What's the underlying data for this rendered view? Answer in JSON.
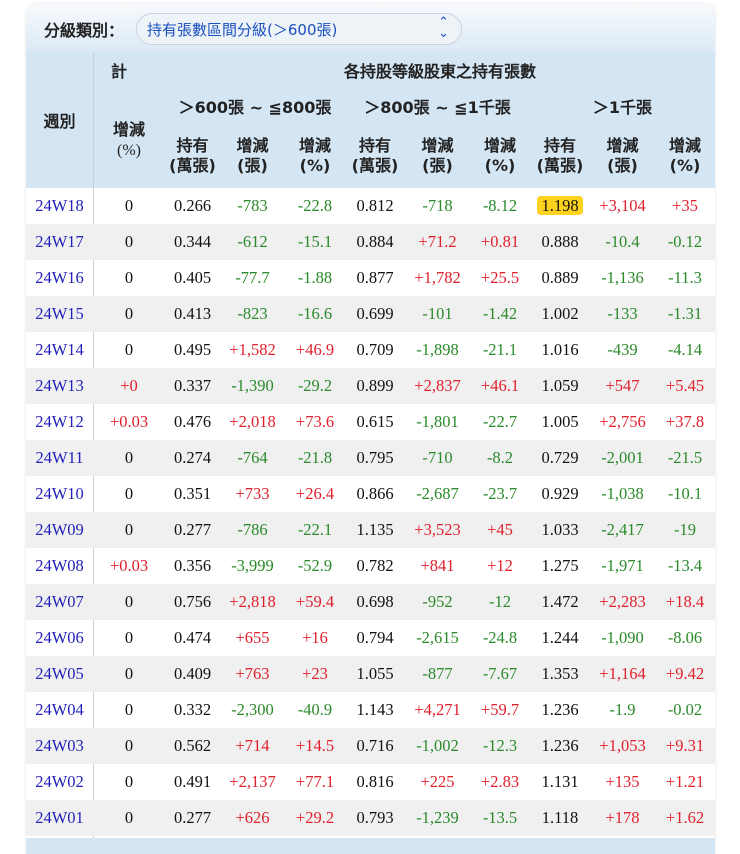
{
  "filter": {
    "label": "分級類別：",
    "selected": "持有張數區間分級(＞600張)",
    "icon": "chevron-up-down-icon"
  },
  "header": {
    "week": "週別",
    "total_partial": "計",
    "total_change_pct": [
      "增減",
      "(%)"
    ],
    "group_title": "各持股等級股東之持有張數",
    "groups": [
      "＞600張 ~ ≦800張",
      "＞800張 ~ ≦1千張",
      "＞1千張"
    ],
    "sub": [
      [
        "持有",
        "(萬張)"
      ],
      [
        "增減",
        "(張)"
      ],
      [
        "增減",
        "(%)"
      ]
    ]
  },
  "colors": {
    "positive": "#e0202c",
    "negative": "#2a8a2a",
    "week_link": "#2222bb",
    "highlight": "#ffd21f"
  },
  "highlight": {
    "week": "24W18",
    "column": 8
  },
  "rows": [
    [
      "24W18",
      "0",
      "0.266",
      "-783",
      "-22.8",
      "0.812",
      "-718",
      "-8.12",
      "1.198",
      "+3,104",
      "+35"
    ],
    [
      "24W17",
      "0",
      "0.344",
      "-612",
      "-15.1",
      "0.884",
      "+71.2",
      "+0.81",
      "0.888",
      "-10.4",
      "-0.12"
    ],
    [
      "24W16",
      "0",
      "0.405",
      "-77.7",
      "-1.88",
      "0.877",
      "+1,782",
      "+25.5",
      "0.889",
      "-1,136",
      "-11.3"
    ],
    [
      "24W15",
      "0",
      "0.413",
      "-823",
      "-16.6",
      "0.699",
      "-101",
      "-1.42",
      "1.002",
      "-133",
      "-1.31"
    ],
    [
      "24W14",
      "0",
      "0.495",
      "+1,582",
      "+46.9",
      "0.709",
      "-1,898",
      "-21.1",
      "1.016",
      "-439",
      "-4.14"
    ],
    [
      "24W13",
      "+0",
      "0.337",
      "-1,390",
      "-29.2",
      "0.899",
      "+2,837",
      "+46.1",
      "1.059",
      "+547",
      "+5.45"
    ],
    [
      "24W12",
      "+0.03",
      "0.476",
      "+2,018",
      "+73.6",
      "0.615",
      "-1,801",
      "-22.7",
      "1.005",
      "+2,756",
      "+37.8"
    ],
    [
      "24W11",
      "0",
      "0.274",
      "-764",
      "-21.8",
      "0.795",
      "-710",
      "-8.2",
      "0.729",
      "-2,001",
      "-21.5"
    ],
    [
      "24W10",
      "0",
      "0.351",
      "+733",
      "+26.4",
      "0.866",
      "-2,687",
      "-23.7",
      "0.929",
      "-1,038",
      "-10.1"
    ],
    [
      "24W09",
      "0",
      "0.277",
      "-786",
      "-22.1",
      "1.135",
      "+3,523",
      "+45",
      "1.033",
      "-2,417",
      "-19"
    ],
    [
      "24W08",
      "+0.03",
      "0.356",
      "-3,999",
      "-52.9",
      "0.782",
      "+841",
      "+12",
      "1.275",
      "-1,971",
      "-13.4"
    ],
    [
      "24W07",
      "0",
      "0.756",
      "+2,818",
      "+59.4",
      "0.698",
      "-952",
      "-12",
      "1.472",
      "+2,283",
      "+18.4"
    ],
    [
      "24W06",
      "0",
      "0.474",
      "+655",
      "+16",
      "0.794",
      "-2,615",
      "-24.8",
      "1.244",
      "-1,090",
      "-8.06"
    ],
    [
      "24W05",
      "0",
      "0.409",
      "+763",
      "+23",
      "1.055",
      "-877",
      "-7.67",
      "1.353",
      "+1,164",
      "+9.42"
    ],
    [
      "24W04",
      "0",
      "0.332",
      "-2,300",
      "-40.9",
      "1.143",
      "+4,271",
      "+59.7",
      "1.236",
      "-1.9",
      "-0.02"
    ],
    [
      "24W03",
      "0",
      "0.562",
      "+714",
      "+14.5",
      "0.716",
      "-1,002",
      "-12.3",
      "1.236",
      "+1,053",
      "+9.31"
    ],
    [
      "24W02",
      "0",
      "0.491",
      "+2,137",
      "+77.1",
      "0.816",
      "+225",
      "+2.83",
      "1.131",
      "+135",
      "+1.21"
    ],
    [
      "24W01",
      "0",
      "0.277",
      "+626",
      "+29.2",
      "0.793",
      "-1,239",
      "-13.5",
      "1.118",
      "+178",
      "+1.62"
    ]
  ]
}
